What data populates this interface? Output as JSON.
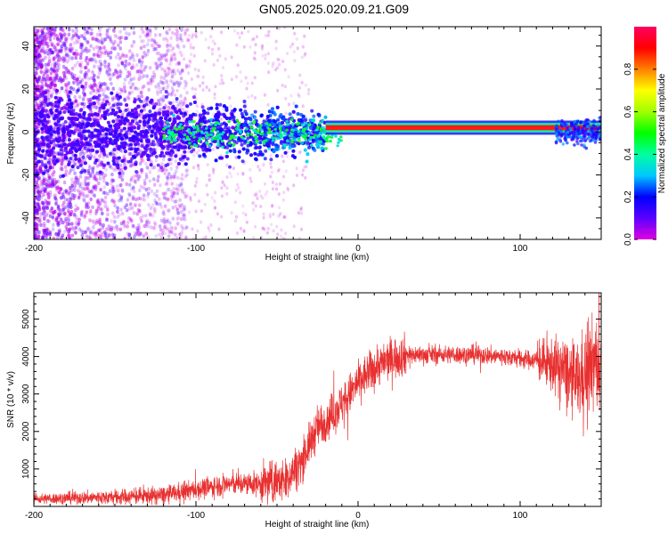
{
  "page_title": "GN05.2025.020.09.21.G09",
  "chart_data": [
    {
      "type": "heatmap",
      "title": "GN05.2025.020.09.21.G09",
      "xlabel": "Height of straight line (km)",
      "ylabel": "Frequency (Hz)",
      "xlim": [
        -200,
        150
      ],
      "ylim": [
        -50,
        49
      ],
      "xticks": [
        -200,
        -100,
        0,
        100
      ],
      "yticks": [
        -40,
        -20,
        0,
        20,
        40
      ],
      "colorbar": {
        "label": "Normalized spectral amplitude",
        "range": [
          0,
          1
        ],
        "ticks": [
          "0.0",
          "0.2",
          "0.4",
          "0.6",
          "0.8"
        ],
        "colormap": [
          "#e000e0",
          "#5a00ff",
          "#0000ff",
          "#00c8ff",
          "#00ffa0",
          "#00ff00",
          "#a0ff00",
          "#ffff00",
          "#ff8000",
          "#ff0000",
          "#ff0060"
        ]
      },
      "description_points": {
        "ridge_frequency_hz": 2,
        "ridge_start_km": -20,
        "ridge_end_km": 150
      },
      "grid": false
    },
    {
      "type": "line",
      "xlabel": "Height of straight line (km)",
      "ylabel": "SNR (10 * v/v)",
      "xlim": [
        -200,
        150
      ],
      "ylim": [
        0,
        5700
      ],
      "xticks": [
        -200,
        -100,
        0,
        100
      ],
      "yticks": [
        1000,
        2000,
        3000,
        4000,
        5000
      ],
      "color": "#e83030",
      "envelope": {
        "x": [
          -200,
          -150,
          -120,
          -100,
          -80,
          -60,
          -45,
          -35,
          -25,
          -15,
          -5,
          0,
          10,
          20,
          30,
          50,
          70,
          90,
          110,
          125,
          135,
          145,
          150
        ],
        "y": [
          200,
          250,
          300,
          450,
          600,
          600,
          700,
          1200,
          2100,
          2500,
          3000,
          3300,
          3700,
          3950,
          4050,
          4050,
          4050,
          4000,
          3900,
          3700,
          3300,
          3800,
          3700
        ]
      },
      "grid": false
    }
  ]
}
